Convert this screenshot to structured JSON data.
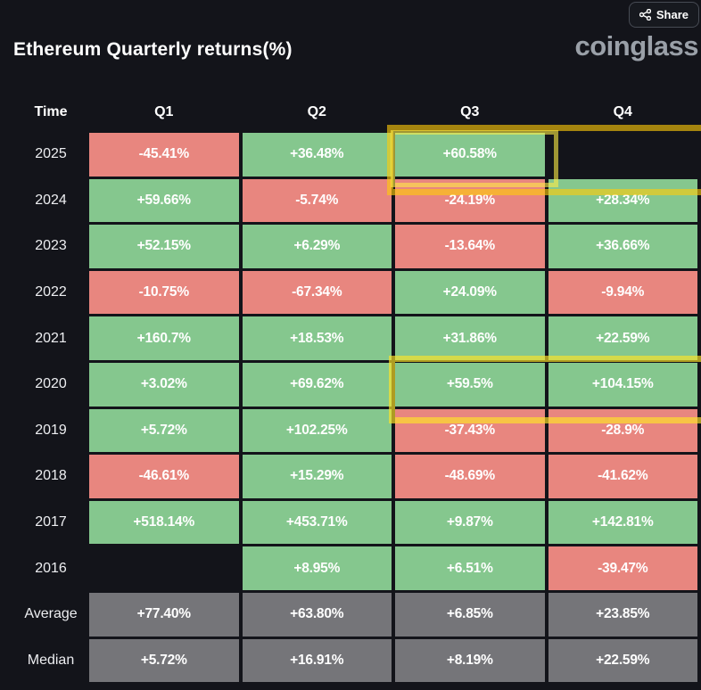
{
  "share": {
    "label": "Share",
    "icon": "share-nodes-icon"
  },
  "header": {
    "title": "Ethereum Quarterly returns(%)",
    "logo": "coinglass"
  },
  "colors": {
    "background": "#13141a",
    "positive_green": "#85c78e",
    "negative_red": "#e8867f",
    "summary_gray": "#757579",
    "highlight_yellow": "#ffd81e",
    "text": "#ffffff",
    "logo_gray": "#9aa0a8"
  },
  "table": {
    "columns": [
      "Time",
      "Q1",
      "Q2",
      "Q3",
      "Q4"
    ],
    "rows": [
      {
        "label": "2025",
        "values": [
          "-45.41%",
          "+36.48%",
          "+60.58%",
          ""
        ],
        "colors": [
          "red",
          "green",
          "green",
          "empty"
        ]
      },
      {
        "label": "2024",
        "values": [
          "+59.66%",
          "-5.74%",
          "-24.19%",
          "+28.34%"
        ],
        "colors": [
          "green",
          "red",
          "red",
          "green"
        ]
      },
      {
        "label": "2023",
        "values": [
          "+52.15%",
          "+6.29%",
          "-13.64%",
          "+36.66%"
        ],
        "colors": [
          "green",
          "green",
          "red",
          "green"
        ]
      },
      {
        "label": "2022",
        "values": [
          "-10.75%",
          "-67.34%",
          "+24.09%",
          "-9.94%"
        ],
        "colors": [
          "red",
          "red",
          "green",
          "red"
        ]
      },
      {
        "label": "2021",
        "values": [
          "+160.7%",
          "+18.53%",
          "+31.86%",
          "+22.59%"
        ],
        "colors": [
          "green",
          "green",
          "green",
          "green"
        ]
      },
      {
        "label": "2020",
        "values": [
          "+3.02%",
          "+69.62%",
          "+59.5%",
          "+104.15%"
        ],
        "colors": [
          "green",
          "green",
          "green",
          "green"
        ]
      },
      {
        "label": "2019",
        "values": [
          "+5.72%",
          "+102.25%",
          "-37.43%",
          "-28.9%"
        ],
        "colors": [
          "green",
          "green",
          "red",
          "red"
        ]
      },
      {
        "label": "2018",
        "values": [
          "-46.61%",
          "+15.29%",
          "-48.69%",
          "-41.62%"
        ],
        "colors": [
          "red",
          "green",
          "red",
          "red"
        ]
      },
      {
        "label": "2017",
        "values": [
          "+518.14%",
          "+453.71%",
          "+9.87%",
          "+142.81%"
        ],
        "colors": [
          "green",
          "green",
          "green",
          "green"
        ]
      },
      {
        "label": "2016",
        "values": [
          "",
          "+8.95%",
          "+6.51%",
          "-39.47%"
        ],
        "colors": [
          "empty",
          "green",
          "green",
          "red"
        ]
      },
      {
        "label": "Average",
        "values": [
          "+77.40%",
          "+63.80%",
          "+6.85%",
          "+23.85%"
        ],
        "colors": [
          "gray",
          "gray",
          "gray",
          "gray"
        ]
      },
      {
        "label": "Median",
        "values": [
          "+5.72%",
          "+16.91%",
          "+8.19%",
          "+22.59%"
        ],
        "colors": [
          "gray",
          "gray",
          "gray",
          "gray"
        ]
      }
    ]
  },
  "chart_data": {
    "type": "table",
    "title": "Ethereum Quarterly returns(%)",
    "columns": [
      "Q1",
      "Q2",
      "Q3",
      "Q4"
    ],
    "row_labels": [
      "2025",
      "2024",
      "2023",
      "2022",
      "2021",
      "2020",
      "2019",
      "2018",
      "2017",
      "2016",
      "Average",
      "Median"
    ],
    "values_pct": [
      [
        -45.41,
        36.48,
        60.58,
        null
      ],
      [
        59.66,
        -5.74,
        -24.19,
        28.34
      ],
      [
        52.15,
        6.29,
        -13.64,
        36.66
      ],
      [
        -10.75,
        -67.34,
        24.09,
        -9.94
      ],
      [
        160.7,
        18.53,
        31.86,
        22.59
      ],
      [
        3.02,
        69.62,
        59.5,
        104.15
      ],
      [
        5.72,
        102.25,
        -37.43,
        -28.9
      ],
      [
        -46.61,
        15.29,
        -48.69,
        -41.62
      ],
      [
        518.14,
        453.71,
        9.87,
        142.81
      ],
      [
        null,
        8.95,
        6.51,
        -39.47
      ],
      [
        77.4,
        63.8,
        6.85,
        23.85
      ],
      [
        5.72,
        16.91,
        8.19,
        22.59
      ]
    ],
    "color_rule": "green = positive return, red = negative return, gray = Average/Median summary rows, blank = no data",
    "annotations": [
      {
        "target": "2025 Q3 + Q4",
        "style": "dark-gold outer box"
      },
      {
        "target": "2025 Q3",
        "style": "bright-yellow inner box"
      },
      {
        "target": "2020 Q3 + Q4",
        "style": "bright-yellow box"
      }
    ]
  }
}
